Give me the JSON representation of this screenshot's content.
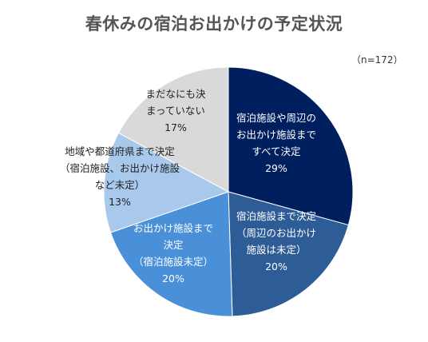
{
  "chart_data": {
    "type": "pie",
    "title": "春休みの宿泊お出かけの予定状況",
    "note": "（n=172）",
    "start_angle_deg": 0,
    "direction": "clockwise",
    "slices": [
      {
        "label_lines": [
          "宿泊施設や周辺の",
          "お出かけ施設まで",
          "すべて決定"
        ],
        "value": 29,
        "value_label": "29%",
        "color": "#001f5f",
        "text_color": "#ffffff"
      },
      {
        "label_lines": [
          "宿泊施設まで決定",
          "（周辺のお出かけ",
          "施設は未定）"
        ],
        "value": 20,
        "value_label": "20%",
        "color": "#2d5c96",
        "text_color": "#ffffff"
      },
      {
        "label_lines": [
          "お出かけ施設まで",
          "決定",
          "（宿泊施設未定）"
        ],
        "value": 20,
        "value_label": "20%",
        "color": "#4a90d9",
        "text_color": "#ffffff"
      },
      {
        "label_lines": [
          "地域や都道府県まで決定",
          "（宿泊施設、お出かけ施設",
          "など未定）"
        ],
        "value": 13,
        "value_label": "13%",
        "color": "#a8c8ec",
        "text_color": "#222222"
      },
      {
        "label_lines": [
          "まだなにも決",
          "まっていない"
        ],
        "value": 17,
        "value_label": "17%",
        "color": "#d9d9d9",
        "text_color": "#222222"
      }
    ]
  }
}
